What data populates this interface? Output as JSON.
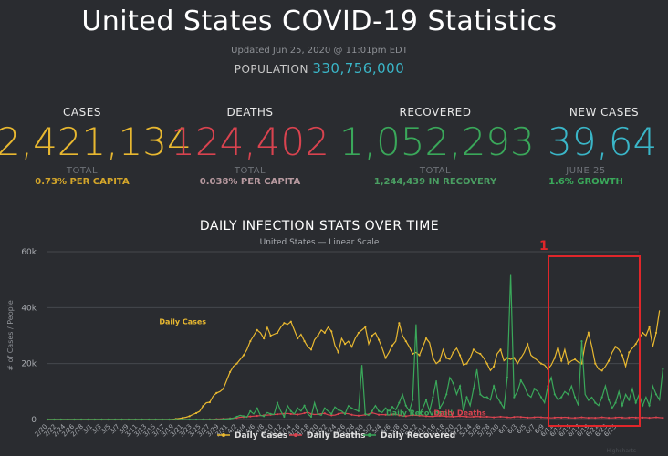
{
  "header": {
    "title": "United States COVID-19 Statistics",
    "updated": "Updated Jun 25, 2020 @ 11:01pm EDT",
    "population_label": "POPULATION",
    "population_value": "330,756,000"
  },
  "stats": [
    {
      "label": "CASES",
      "value": "2,421,134",
      "sub": "TOTAL",
      "detail": "0.73% PER CAPITA",
      "color": "#e8b830",
      "detail_color": "#d4a62a"
    },
    {
      "label": "DEATHS",
      "value": "124,402",
      "sub": "TOTAL",
      "detail": "0.038% PER CAPITA",
      "color": "#d9434f",
      "detail_color": "#b89aa0"
    },
    {
      "label": "RECOVERED",
      "value": "1,052,293",
      "sub": "TOTAL",
      "detail": "1,244,439 IN RECOVERY",
      "color": "#3aa85a",
      "detail_color": "#4a9e62"
    },
    {
      "label": "NEW CASES",
      "value": "39,64",
      "sub": "JUNE 25",
      "detail": "1.6% GROWTH",
      "color": "#3ab6c8",
      "detail_color": "#3aa85a"
    }
  ],
  "annotation": {
    "label": "1",
    "color": "#e0262a"
  },
  "watermark": "Highcharts",
  "chart_data": {
    "type": "line",
    "title": "DAILY INFECTION STATS OVER TIME",
    "subtitle": "United States — Linear Scale",
    "ylabel": "# of Cases / People",
    "ylim": [
      0,
      60000
    ],
    "yticks": [
      0,
      20000,
      40000,
      60000
    ],
    "ytick_labels": [
      "0",
      "20k",
      "40k",
      "60k"
    ],
    "x_tick_labels": [
      "2/20",
      "2/22",
      "2/24",
      "2/26",
      "2/28",
      "3/1",
      "3/3",
      "3/5",
      "3/7",
      "3/9",
      "3/11",
      "3/13",
      "3/15",
      "3/17",
      "3/19",
      "3/21",
      "3/23",
      "3/25",
      "3/27",
      "3/29",
      "3/31",
      "4/2",
      "4/4",
      "4/6",
      "4/8",
      "4/10",
      "4/12",
      "4/14",
      "4/16",
      "4/18",
      "4/20",
      "4/22",
      "4/24",
      "4/26",
      "4/28",
      "4/30",
      "5/2",
      "5/4",
      "5/6",
      "5/8",
      "5/10",
      "5/12",
      "5/14",
      "5/16",
      "5/18",
      "5/20",
      "5/22",
      "5/24",
      "5/26",
      "5/28",
      "5/30",
      "6/1",
      "6/3",
      "6/5",
      "6/7",
      "6/9",
      "6/11",
      "6/13",
      "6/15",
      "6/17",
      "6/19",
      "6/21",
      "6/23",
      "6/25"
    ],
    "series_labels": [
      {
        "text": "Daily Cases",
        "series": 0,
        "x_index": 40,
        "y": 34000
      },
      {
        "text": "Daily Recovered",
        "series": 2,
        "x_index": 110,
        "y": 1500
      },
      {
        "text": "Daily Deaths",
        "series": 1,
        "x_index": 122,
        "y": 1500
      }
    ],
    "series": [
      {
        "name": "Daily Cases",
        "color": "#e8b830",
        "values": [
          0,
          0,
          0,
          0,
          0,
          0,
          0,
          0,
          0,
          0,
          0,
          0,
          0,
          0,
          0,
          0,
          0,
          0,
          0,
          0,
          0,
          0,
          0,
          0,
          0,
          0,
          0,
          0,
          0,
          0,
          0,
          0,
          0,
          0,
          0,
          0,
          0,
          100,
          200,
          400,
          600,
          800,
          1200,
          1800,
          2300,
          2900,
          4800,
          6000,
          6200,
          8400,
          9500,
          10000,
          11000,
          14000,
          17000,
          19000,
          20000,
          21500,
          23000,
          25000,
          28000,
          30000,
          32000,
          31000,
          29000,
          33000,
          30000,
          30500,
          31000,
          33000,
          34500,
          34000,
          35000,
          32000,
          29000,
          30500,
          28000,
          26000,
          25000,
          28500,
          30000,
          32000,
          31000,
          33000,
          31500,
          26500,
          24000,
          29000,
          27000,
          28000,
          26000,
          29000,
          31000,
          32000,
          33000,
          27000,
          30000,
          31000,
          28500,
          25500,
          22000,
          24000,
          26500,
          28000,
          34500,
          30000,
          28000,
          26000,
          23500,
          24000,
          23000,
          26000,
          29000,
          27500,
          22000,
          20000,
          21000,
          25000,
          22000,
          21500,
          24000,
          25500,
          23000,
          19500,
          20000,
          22000,
          25000,
          24000,
          23500,
          22000,
          20000,
          17500,
          19000,
          23500,
          25000,
          21000,
          22000,
          21500,
          22000,
          20000,
          22000,
          24000,
          27000,
          23000,
          22000,
          21000,
          20000,
          19500,
          18000,
          19500,
          22000,
          26000,
          21000,
          25000,
          20000,
          21000,
          21500,
          20500,
          20000,
          27000,
          31000,
          26000,
          20000,
          18000,
          17500,
          19000,
          21000,
          24000,
          26000,
          25000,
          23000,
          19000,
          24000,
          25500,
          27000,
          29000,
          31000,
          30000,
          33000,
          26000,
          31000,
          39000
        ]
      },
      {
        "name": "Daily Deaths",
        "color": "#d9434f",
        "values": [
          0,
          0,
          0,
          0,
          0,
          0,
          0,
          0,
          0,
          0,
          0,
          0,
          0,
          0,
          0,
          0,
          0,
          0,
          0,
          0,
          0,
          0,
          0,
          0,
          0,
          0,
          0,
          0,
          0,
          0,
          0,
          0,
          0,
          0,
          0,
          0,
          0,
          0,
          0,
          0,
          0,
          0,
          0,
          0,
          0,
          0,
          50,
          60,
          80,
          100,
          150,
          200,
          250,
          300,
          400,
          500,
          600,
          800,
          900,
          1000,
          1100,
          1200,
          1300,
          1400,
          1500,
          1600,
          1700,
          1800,
          1900,
          2000,
          2100,
          2200,
          2000,
          1900,
          1800,
          2000,
          2300,
          2600,
          2000,
          1800,
          1900,
          2100,
          2200,
          1700,
          1500,
          1600,
          2000,
          2300,
          2200,
          2100,
          1700,
          1500,
          1400,
          1500,
          1700,
          2000,
          2400,
          2100,
          1700,
          1800,
          1700,
          1600,
          1800,
          1900,
          1500,
          1300,
          1200,
          1400,
          1600,
          1500,
          1400,
          1300,
          1200,
          1100,
          1100,
          1200,
          1300,
          1200,
          1100,
          1000,
          1000,
          1100,
          1200,
          1100,
          1000,
          900,
          1000,
          1100,
          1000,
          900,
          1000,
          900,
          800,
          900,
          1000,
          900,
          800,
          700,
          900,
          1000,
          900,
          800,
          700,
          700,
          800,
          900,
          800,
          700,
          700,
          600,
          700,
          800,
          700,
          800,
          700,
          600,
          600,
          700,
          800,
          700,
          600,
          700,
          600,
          700,
          800,
          700,
          600,
          600,
          700,
          800,
          700,
          600,
          700,
          800,
          700,
          700,
          700,
          700,
          600,
          700,
          800,
          700,
          600
        ]
      },
      {
        "name": "Daily Recovered",
        "color": "#3aa85a",
        "values": [
          0,
          0,
          0,
          0,
          0,
          0,
          0,
          0,
          0,
          0,
          0,
          0,
          0,
          0,
          0,
          0,
          0,
          0,
          0,
          0,
          0,
          0,
          0,
          0,
          0,
          0,
          0,
          0,
          0,
          0,
          0,
          0,
          0,
          0,
          0,
          0,
          0,
          0,
          0,
          0,
          0,
          0,
          0,
          0,
          0,
          0,
          0,
          0,
          0,
          0,
          0,
          0,
          100,
          200,
          300,
          500,
          1000,
          1500,
          1200,
          800,
          3000,
          2000,
          4000,
          1500,
          1200,
          2500,
          2000,
          1800,
          6000,
          3000,
          1000,
          5000,
          3000,
          2000,
          4000,
          3000,
          5000,
          2000,
          1000,
          6000,
          2000,
          1500,
          4000,
          3000,
          2000,
          4500,
          3500,
          3000,
          2000,
          5000,
          4000,
          3500,
          3000,
          19500,
          2000,
          1500,
          3000,
          5000,
          3000,
          2500,
          4000,
          3000,
          4500,
          3500,
          6000,
          9000,
          5000,
          3000,
          7000,
          34000,
          2000,
          4000,
          7000,
          3000,
          8000,
          14000,
          4000,
          6000,
          9000,
          15000,
          13000,
          9000,
          12000,
          3000,
          8000,
          5000,
          11000,
          18000,
          9000,
          8000,
          8000,
          7000,
          12000,
          8000,
          6000,
          4000,
          15000,
          52000,
          8000,
          10000,
          14000,
          12000,
          9000,
          8000,
          11000,
          10000,
          8000,
          6000,
          12000,
          15000,
          9000,
          7000,
          8000,
          10000,
          9000,
          12000,
          8000,
          5000,
          28000,
          9000,
          7000,
          8000,
          6000,
          5000,
          8000,
          12000,
          7000,
          4000,
          6000,
          10000,
          5000,
          9000,
          7000,
          11000,
          6000,
          9000,
          5000,
          8000,
          5000,
          12000,
          9000,
          7000,
          18000
        ]
      }
    ],
    "legend": [
      "Daily Cases",
      "Daily Deaths",
      "Daily Recovered"
    ]
  }
}
